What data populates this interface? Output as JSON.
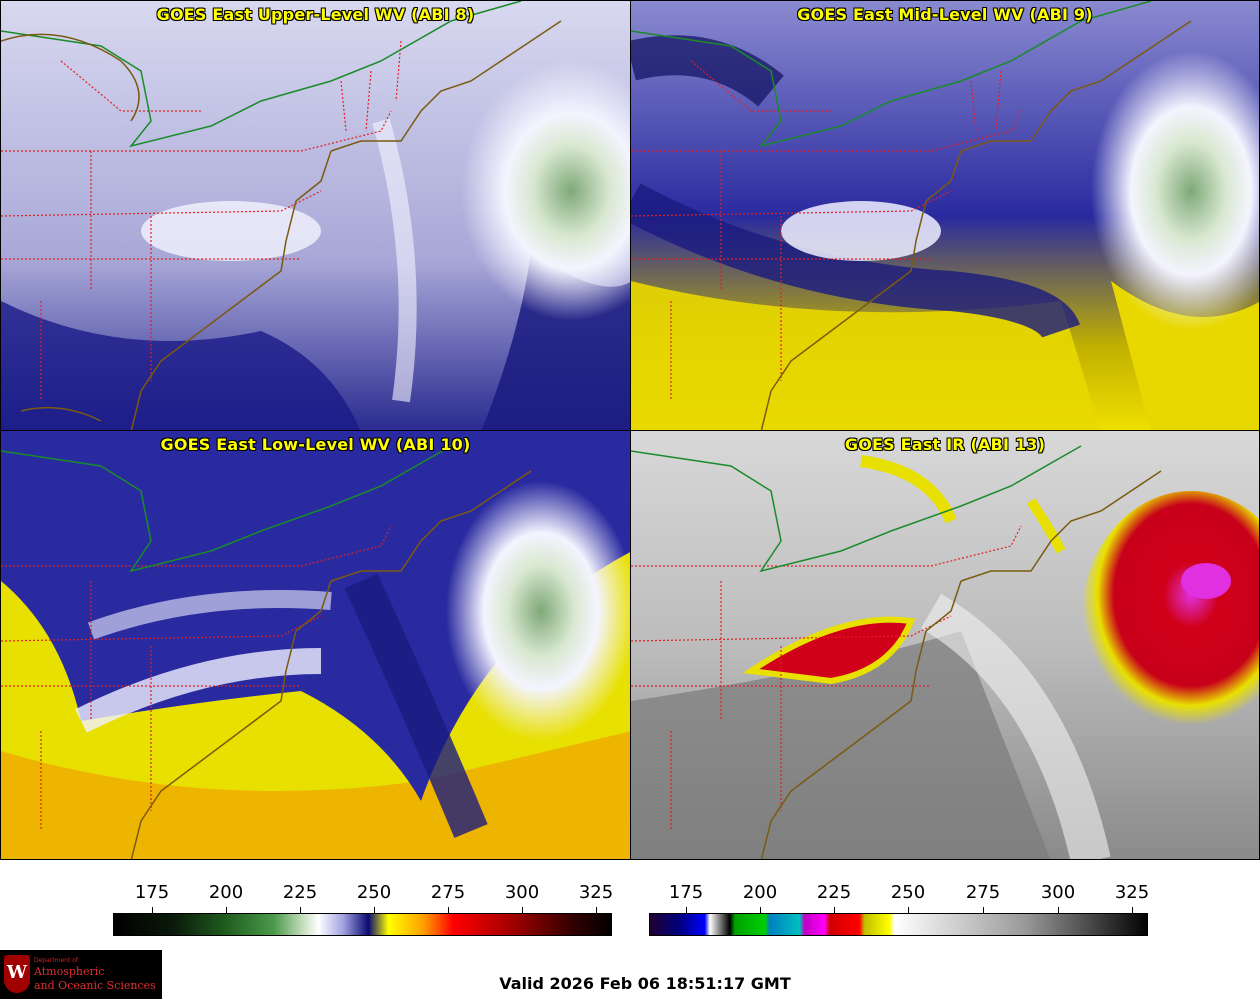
{
  "panels": [
    {
      "title": "GOES East Upper-Level WV (ABI 8)",
      "channel": "ABI 8"
    },
    {
      "title": "GOES East Mid-Level WV (ABI 9)",
      "channel": "ABI 9"
    },
    {
      "title": "GOES East Low-Level WV (ABI 10)",
      "channel": "ABI 10"
    },
    {
      "title": "GOES East IR (ABI 13)",
      "channel": "ABI 13"
    }
  ],
  "colorbars": {
    "wv": {
      "ticks": [
        "175",
        "200",
        "225",
        "250",
        "275",
        "300",
        "325"
      ]
    },
    "ir": {
      "ticks": [
        "175",
        "200",
        "225",
        "250",
        "275",
        "300",
        "325"
      ]
    }
  },
  "logo": {
    "line1": "Department of",
    "line2": "Atmospheric",
    "line3": "and Oceanic Sciences",
    "emblem": "W"
  },
  "valid_time": "Valid 2026 Feb 06 18:51:17 GMT",
  "colors": {
    "title_text": "#ffff00",
    "state_borders": "#e02020",
    "coastline": "#7a5a10",
    "intl_border": "#1a8a2a",
    "ir_cold_red": "#d0001a",
    "ir_cold_magenta": "#e020e0",
    "wv_moist_white": "#f0f0ff",
    "wv_dry_navy": "#101070",
    "wv_very_dry_yellow": "#f0e000"
  }
}
